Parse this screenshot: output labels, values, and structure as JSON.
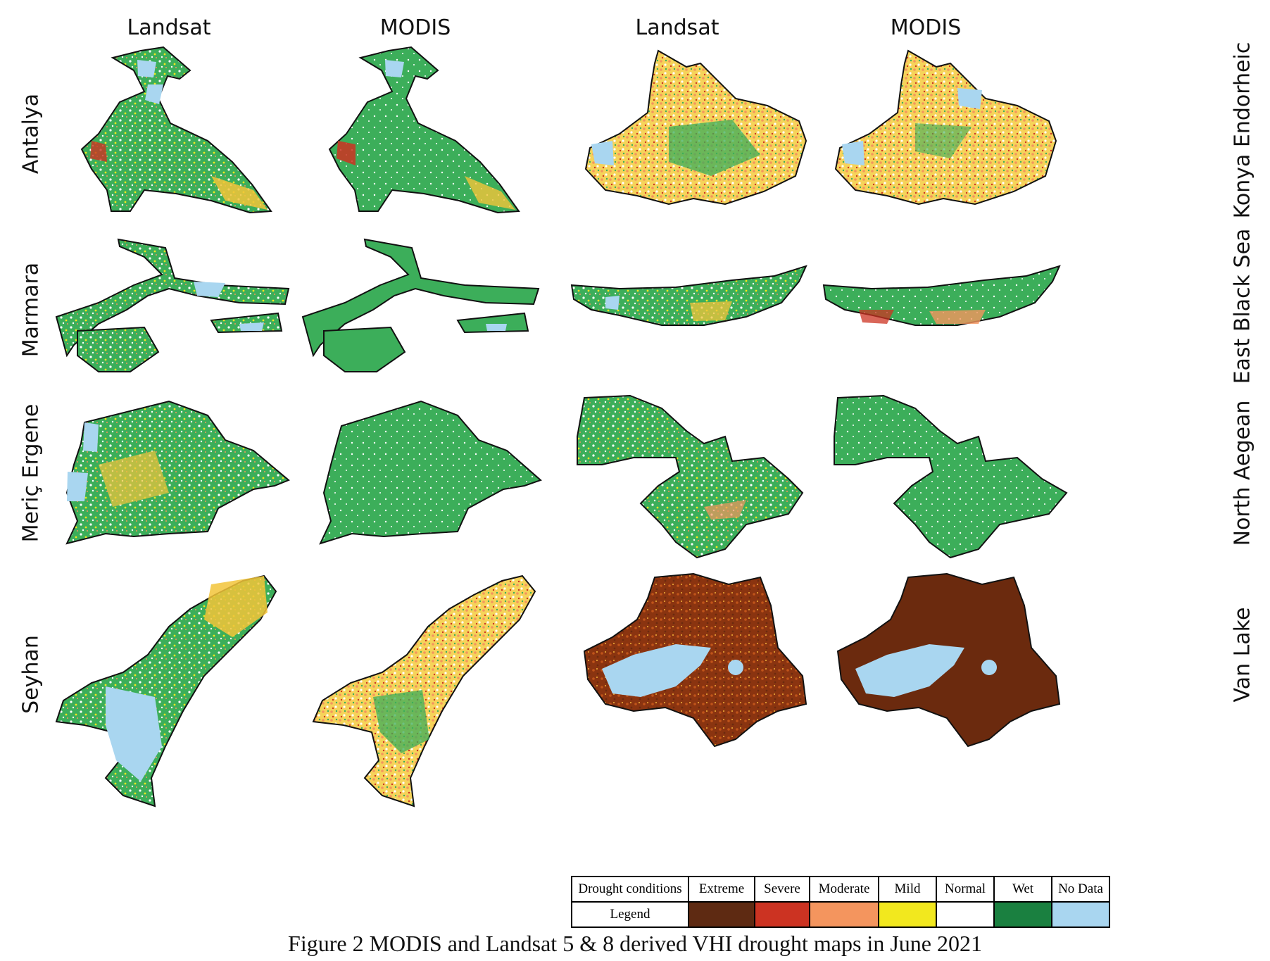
{
  "columns": [
    "Landsat",
    "MODIS",
    "Landsat",
    "MODIS"
  ],
  "rows_left": [
    "Antalya",
    "Marmara",
    "Meriç Ergene",
    "Seyhan"
  ],
  "rows_right": [
    "Konya Endorheic",
    "East Black Sea",
    "North Aegean",
    "Van Lake"
  ],
  "legend": {
    "header": "Drought conditions",
    "row_label": "Legend",
    "classes": [
      {
        "name": "Extreme",
        "color": "#5e2a12"
      },
      {
        "name": "Severe",
        "color": "#cc3322"
      },
      {
        "name": "Moderate",
        "color": "#f4955e"
      },
      {
        "name": "Mild",
        "color": "#f2e81e"
      },
      {
        "name": "Normal",
        "color": "#ffffff"
      },
      {
        "name": "Wet",
        "color": "#1a8040"
      },
      {
        "name": "No Data",
        "color": "#a9d6f0"
      }
    ]
  },
  "caption": "Figure 2 MODIS and Landsat 5 & 8 derived VHI drought maps in June 2021",
  "colors": {
    "vegetation": "#3cae5a",
    "water": "#a9d6f0",
    "moderate": "#f4955e",
    "mild": "#f2e81e",
    "severe": "#cc3322",
    "extreme": "#6b2a0e"
  }
}
